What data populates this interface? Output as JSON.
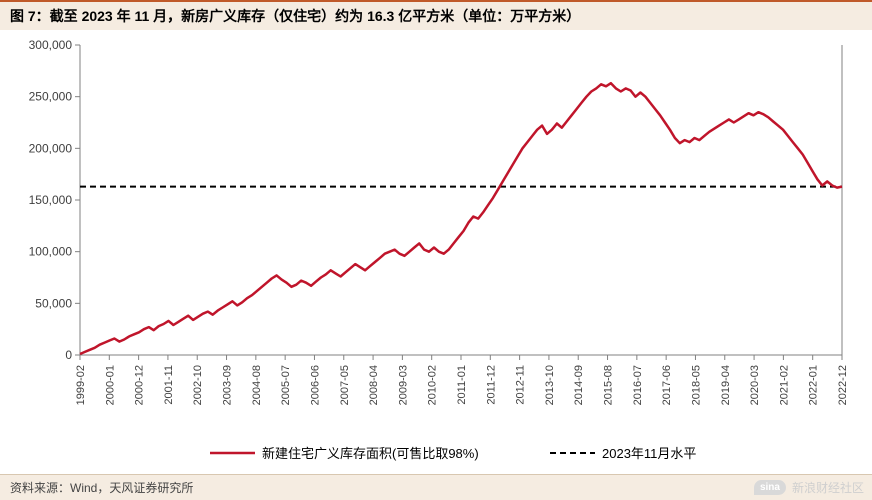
{
  "title": "图 7：截至 2023 年 11 月，新房广义库存（仅住宅）约为 16.3 亿平方米（单位：万平方米）",
  "source": "资料来源：Wind，天风证券研究所",
  "watermark": "新浪财经社区",
  "watermark_logo": "sina",
  "chart": {
    "type": "line",
    "background_color": "#ffffff",
    "plot_border_color": "#808080",
    "grid": false,
    "ylim": [
      0,
      300000
    ],
    "ytick_step": 50000,
    "yticks": [
      "0",
      "50,000",
      "100,000",
      "150,000",
      "200,000",
      "250,000",
      "300,000"
    ],
    "y_font_size": 12,
    "x_labels": [
      "1999-02",
      "2000-01",
      "2000-12",
      "2001-11",
      "2002-10",
      "2003-09",
      "2004-08",
      "2005-07",
      "2006-06",
      "2007-05",
      "2008-04",
      "2009-03",
      "2010-02",
      "2011-01",
      "2011-12",
      "2012-11",
      "2013-10",
      "2014-09",
      "2015-08",
      "2016-07",
      "2017-06",
      "2018-05",
      "2019-04",
      "2020-03",
      "2021-02",
      "2022-01",
      "2022-12"
    ],
    "x_label_rotation": 90,
    "x_font_size": 11,
    "reference_line": {
      "value": 163000,
      "label": "2023年11月水平",
      "color": "#000000",
      "dash": "6,4",
      "width": 2
    },
    "series": {
      "label": "新建住宅广义库存面积(可售比取98%)",
      "color": "#c0152b",
      "width": 2.5,
      "data": [
        1000,
        3000,
        5000,
        7000,
        10000,
        12000,
        14000,
        16000,
        13000,
        15000,
        18000,
        20000,
        22000,
        25000,
        27000,
        24000,
        28000,
        30000,
        33000,
        29000,
        32000,
        35000,
        38000,
        34000,
        37000,
        40000,
        42000,
        39000,
        43000,
        46000,
        49000,
        52000,
        48000,
        51000,
        55000,
        58000,
        62000,
        66000,
        70000,
        74000,
        77000,
        73000,
        70000,
        66000,
        68000,
        72000,
        70000,
        67000,
        71000,
        75000,
        78000,
        82000,
        79000,
        76000,
        80000,
        84000,
        88000,
        85000,
        82000,
        86000,
        90000,
        94000,
        98000,
        100000,
        102000,
        98000,
        96000,
        100000,
        104000,
        108000,
        102000,
        100000,
        104000,
        100000,
        98000,
        102000,
        108000,
        114000,
        120000,
        128000,
        134000,
        132000,
        138000,
        145000,
        152000,
        160000,
        168000,
        176000,
        184000,
        192000,
        200000,
        206000,
        212000,
        218000,
        222000,
        214000,
        218000,
        224000,
        220000,
        226000,
        232000,
        238000,
        244000,
        250000,
        255000,
        258000,
        262000,
        260000,
        263000,
        258000,
        255000,
        258000,
        256000,
        250000,
        254000,
        250000,
        244000,
        238000,
        232000,
        225000,
        218000,
        210000,
        205000,
        208000,
        206000,
        210000,
        208000,
        212000,
        216000,
        219000,
        222000,
        225000,
        228000,
        225000,
        228000,
        231000,
        234000,
        232000,
        235000,
        233000,
        230000,
        226000,
        222000,
        218000,
        212000,
        206000,
        200000,
        194000,
        186000,
        178000,
        170000,
        164000,
        168000,
        164000,
        162000,
        163000
      ]
    },
    "legend_font_size": 13
  },
  "colors": {
    "title_bg": "#f5ece1",
    "title_border": "#c05a2a",
    "axis": "#808080",
    "tick_text": "#404040"
  }
}
